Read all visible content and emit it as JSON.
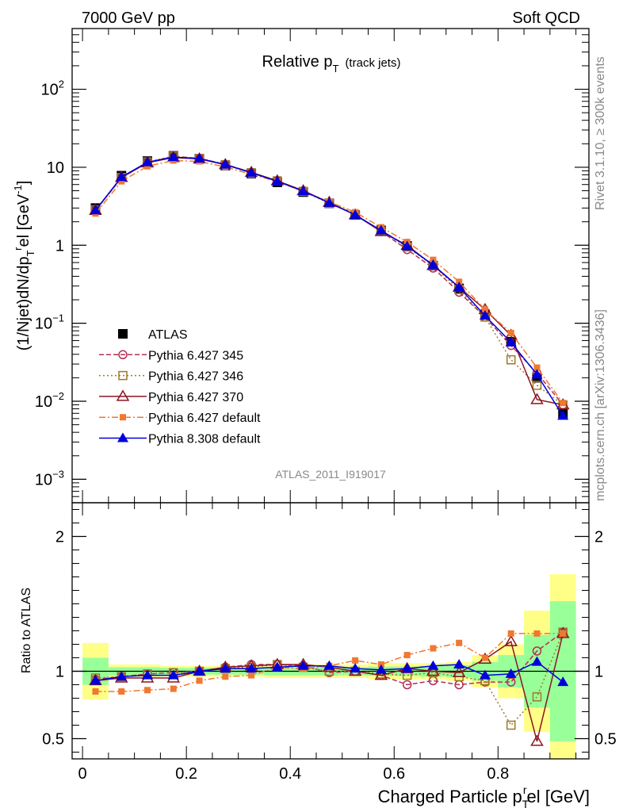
{
  "header": {
    "left": "7000 GeV pp",
    "right": "Soft QCD"
  },
  "side": {
    "rivet": "Rivet 3.1.10, ≥ 300k events",
    "mcplots": "mcplots.cern.ch [arXiv:1306.3436]"
  },
  "analysis_label": "ATLAS_2011_I919017",
  "chart_data": [
    {
      "type": "line",
      "title_main": "Relative p",
      "title_sub": "T",
      "title_note": "(track jets)",
      "ylabel": "(1/Njet)dN/dp",
      "ylabel_sub": "T",
      "ylabel_sup": "r",
      "ylabel_tail": "el [GeV",
      "ylabel_unit_sup": "-1",
      "ylabel_end": "]",
      "yscale": "log",
      "ylim": [
        0.0005,
        600
      ],
      "xlim": [
        -0.02,
        0.975
      ],
      "y_ticks": [
        {
          "v": 0.001,
          "base": "10",
          "exp": "−3"
        },
        {
          "v": 0.01,
          "base": "10",
          "exp": "−2"
        },
        {
          "v": 0.1,
          "base": "10",
          "exp": "−1"
        },
        {
          "v": 1,
          "base": "1",
          "exp": ""
        },
        {
          "v": 10,
          "base": "10",
          "exp": ""
        },
        {
          "v": 100,
          "base": "10",
          "exp": "2"
        }
      ],
      "x": [
        0.025,
        0.075,
        0.125,
        0.175,
        0.225,
        0.275,
        0.325,
        0.375,
        0.425,
        0.475,
        0.525,
        0.575,
        0.625,
        0.675,
        0.725,
        0.775,
        0.825,
        0.875,
        0.925
      ],
      "series": [
        {
          "name": "ATLAS",
          "color": "#000000",
          "marker": "square-filled",
          "dash": "none",
          "values": [
            3.0,
            7.8,
            12.0,
            14.0,
            12.8,
            10.5,
            8.3,
            6.4,
            4.8,
            3.45,
            2.45,
            1.55,
            0.98,
            0.55,
            0.28,
            0.13,
            0.058,
            0.02,
            0.007
          ]
        },
        {
          "name": "Pythia 6.427 345",
          "color": "#b03050",
          "marker": "circle-open",
          "dash": "6,3",
          "values": [
            2.8,
            7.3,
            11.5,
            13.8,
            13.0,
            10.9,
            8.6,
            6.7,
            5.0,
            3.5,
            2.5,
            1.5,
            0.88,
            0.51,
            0.25,
            0.12,
            0.052,
            0.023,
            0.009
          ]
        },
        {
          "name": "Pythia 6.427 346",
          "color": "#a07828",
          "marker": "square-open",
          "dash": "2,3",
          "values": [
            2.85,
            7.4,
            11.7,
            13.9,
            13.0,
            10.8,
            8.5,
            6.7,
            4.9,
            3.45,
            2.48,
            1.52,
            0.95,
            0.55,
            0.27,
            0.12,
            0.034,
            0.016,
            0.009
          ]
        },
        {
          "name": "Pythia 6.427 370",
          "color": "#8b1520",
          "marker": "triangle-open",
          "dash": "none",
          "values": [
            2.8,
            7.4,
            11.4,
            13.3,
            12.8,
            10.8,
            8.6,
            6.7,
            5.0,
            3.55,
            2.45,
            1.5,
            1.0,
            0.55,
            0.29,
            0.15,
            0.07,
            0.0105,
            0.009
          ]
        },
        {
          "name": "Pythia 6.427 default",
          "color": "#f07830",
          "marker": "square-filled-small",
          "dash": "8,3,2,3",
          "values": [
            2.55,
            6.6,
            10.3,
            12.2,
            11.9,
            10.1,
            8.1,
            6.6,
            4.9,
            3.6,
            2.65,
            1.7,
            1.1,
            0.65,
            0.34,
            0.15,
            0.075,
            0.027,
            0.0095
          ]
        },
        {
          "name": "Pythia 8.308 default",
          "color": "#0000dd",
          "marker": "triangle-filled",
          "dash": "none",
          "values": [
            2.8,
            7.5,
            11.6,
            13.5,
            12.9,
            10.8,
            8.5,
            6.6,
            4.95,
            3.5,
            2.45,
            1.55,
            0.97,
            0.56,
            0.29,
            0.125,
            0.057,
            0.022,
            0.0065
          ]
        }
      ]
    },
    {
      "type": "line",
      "ylabel": "Ratio to ATLAS",
      "xlabel_main": "Charged Particle p",
      "xlabel_sub": "T",
      "xlabel_sup": "r",
      "xlabel_tail": "el [GeV]",
      "ylim": [
        0.35,
        2.25
      ],
      "xlim": [
        -0.02,
        0.975
      ],
      "y_ticks": [
        0.5,
        1,
        2
      ],
      "x_ticks": [
        0,
        0.2,
        0.4,
        0.6,
        0.8
      ],
      "band_edges": [
        0,
        0.05,
        0.1,
        0.15,
        0.2,
        0.25,
        0.3,
        0.35,
        0.4,
        0.45,
        0.5,
        0.55,
        0.6,
        0.65,
        0.7,
        0.75,
        0.8,
        0.85,
        0.9,
        0.95
      ],
      "band_yellow": [
        0.21,
        0.05,
        0.05,
        0.04,
        0.04,
        0.04,
        0.04,
        0.05,
        0.05,
        0.05,
        0.05,
        0.06,
        0.06,
        0.06,
        0.07,
        0.12,
        0.2,
        0.45,
        0.72
      ],
      "band_green": [
        0.1,
        0.03,
        0.03,
        0.025,
        0.025,
        0.025,
        0.025,
        0.03,
        0.03,
        0.03,
        0.03,
        0.035,
        0.035,
        0.04,
        0.045,
        0.07,
        0.12,
        0.27,
        0.52
      ],
      "x": [
        0.025,
        0.075,
        0.125,
        0.175,
        0.225,
        0.275,
        0.325,
        0.375,
        0.425,
        0.475,
        0.525,
        0.575,
        0.625,
        0.675,
        0.725,
        0.775,
        0.825,
        0.875,
        0.925
      ],
      "series": [
        {
          "name": "Pythia 6.427 345",
          "values": [
            0.94,
            0.96,
            0.98,
            0.99,
            1.0,
            1.03,
            1.05,
            1.05,
            1.04,
            0.99,
            1.0,
            0.97,
            0.9,
            0.93,
            0.9,
            0.92,
            0.92,
            1.15,
            1.29
          ]
        },
        {
          "name": "Pythia 6.427 346",
          "values": [
            0.95,
            0.96,
            0.98,
            0.99,
            1.0,
            1.02,
            1.03,
            1.05,
            1.03,
            1.0,
            1.0,
            0.98,
            0.97,
            0.99,
            0.96,
            0.93,
            0.6,
            0.81,
            1.29
          ]
        },
        {
          "name": "Pythia 6.427 370",
          "values": [
            0.93,
            0.95,
            0.95,
            0.95,
            1.0,
            1.03,
            1.04,
            1.05,
            1.05,
            1.03,
            1.0,
            0.97,
            1.02,
            1.0,
            0.99,
            1.09,
            1.22,
            0.48,
            1.28
          ]
        },
        {
          "name": "Pythia 6.427 default",
          "values": [
            0.85,
            0.85,
            0.86,
            0.87,
            0.93,
            0.96,
            0.97,
            1.03,
            1.02,
            1.04,
            1.08,
            1.05,
            1.12,
            1.17,
            1.21,
            1.1,
            1.28,
            1.28,
            1.28
          ]
        },
        {
          "name": "Pythia 8.308 default",
          "values": [
            0.93,
            0.96,
            0.97,
            0.97,
            1.0,
            1.02,
            1.02,
            1.03,
            1.04,
            1.04,
            1.02,
            1.01,
            1.02,
            1.04,
            1.05,
            0.97,
            0.98,
            1.07,
            0.92
          ]
        }
      ]
    }
  ]
}
